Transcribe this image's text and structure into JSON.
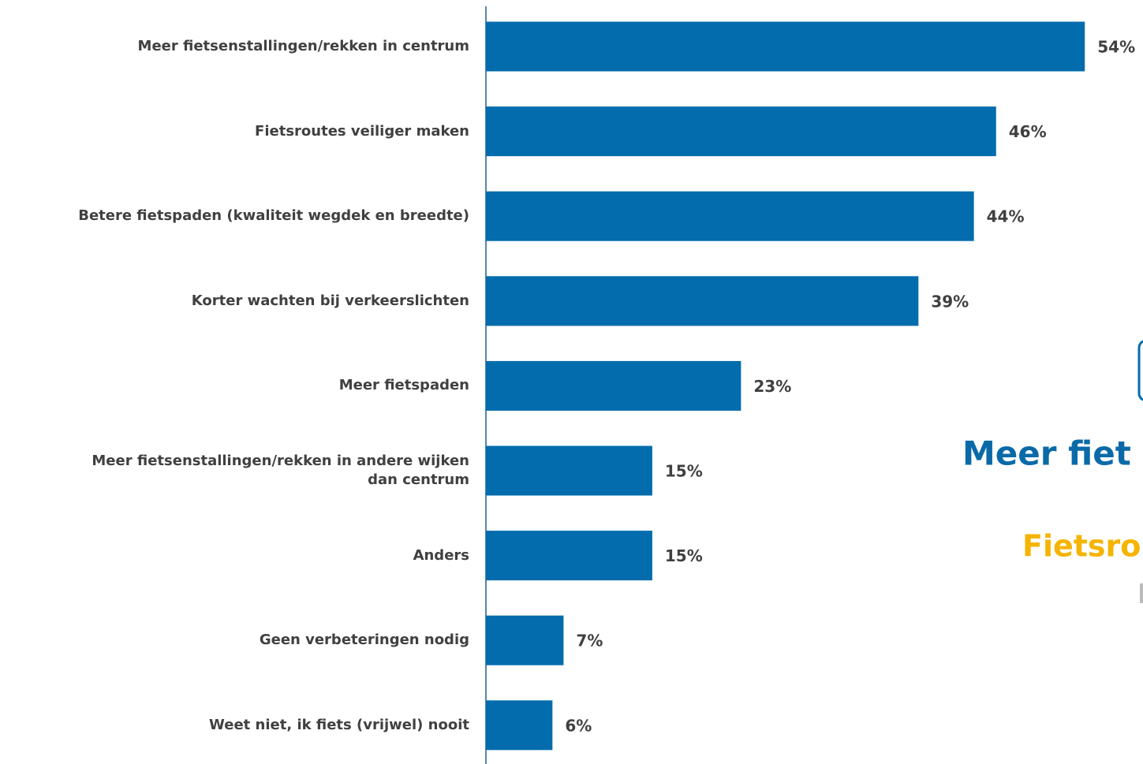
{
  "chart_data": {
    "type": "barh",
    "categories": [
      "Meer fietsenstallingen/rekken in centrum",
      "Fietsroutes veiliger maken",
      "Betere fietspaden (kwaliteit wegdek en breedte)",
      "Korter wachten bij verkeerslichten",
      "Meer fietspaden",
      "Meer fietsenstallingen/rekken in andere wijken\ndan centrum",
      "Anders",
      "Geen verbeteringen nodig",
      "Weet niet, ik fiets (vrijwel) nooit"
    ],
    "values": [
      54,
      46,
      44,
      39,
      23,
      15,
      15,
      7,
      6
    ],
    "value_labels": [
      "54%",
      "46%",
      "44%",
      "39%",
      "23%",
      "15%",
      "15%",
      "7%",
      "6%"
    ],
    "color": "#036cad",
    "annotations": [
      {
        "text": "Meer fiet",
        "color": "#0a6aa8"
      },
      {
        "text": "Fietsro",
        "color": "#f5b400"
      }
    ]
  }
}
